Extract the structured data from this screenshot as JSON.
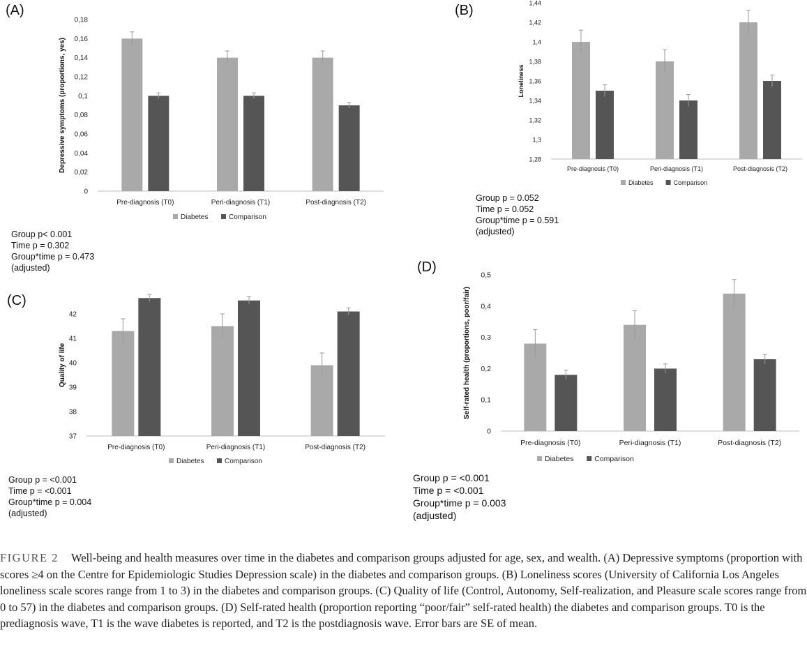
{
  "legend": {
    "diabetes": "Diabetes",
    "comparison": "Comparison"
  },
  "colors": {
    "diabetes": "#a9a9a9",
    "comparison": "#555555",
    "axis": "#bdbdbd",
    "errorbar": "#999999"
  },
  "chart_data": [
    {
      "panel_label": "(A)",
      "type": "bar",
      "ylabel": "Depressive symptoms (proportions, yes)",
      "categories": [
        "Pre-diagnosis (T0)",
        "Peri-diagnosis (T1)",
        "Post-diagnosis (T2)"
      ],
      "ylim": [
        0,
        0.18
      ],
      "yticks": [
        0,
        0.02,
        0.04,
        0.06,
        0.08,
        0.1,
        0.12,
        0.14,
        0.16,
        0.18
      ],
      "ytick_labels": [
        "0",
        "0,02",
        "0,04",
        "0,06",
        "0,08",
        "0,1",
        "0,12",
        "0,14",
        "0,16",
        "0,18"
      ],
      "series": [
        {
          "name": "Diabetes",
          "values": [
            0.16,
            0.14,
            0.14
          ],
          "errors": [
            0.007,
            0.007,
            0.007
          ]
        },
        {
          "name": "Comparison",
          "values": [
            0.1,
            0.1,
            0.09
          ],
          "errors": [
            0.003,
            0.003,
            0.003
          ]
        }
      ],
      "stats": [
        "Group p< 0.001",
        "Time p = 0.302",
        "Group*time p = 0.473",
        "(adjusted)"
      ]
    },
    {
      "panel_label": "(B)",
      "type": "bar",
      "ylabel": "Loneliness",
      "categories": [
        "Pre-diagnosis (T0)",
        "Peri-diagnosis (T1)",
        "Post-diagnosis (T2)"
      ],
      "ylim": [
        1.28,
        1.44
      ],
      "yticks": [
        1.28,
        1.3,
        1.32,
        1.34,
        1.36,
        1.38,
        1.4,
        1.42,
        1.44
      ],
      "ytick_labels": [
        "1,28",
        "1,3",
        "1,32",
        "1,34",
        "1,36",
        "1,38",
        "1,4",
        "1,42",
        "1,44"
      ],
      "series": [
        {
          "name": "Diabetes",
          "values": [
            1.4,
            1.38,
            1.42
          ],
          "errors": [
            0.012,
            0.012,
            0.012
          ]
        },
        {
          "name": "Comparison",
          "values": [
            1.35,
            1.34,
            1.36
          ],
          "errors": [
            0.006,
            0.006,
            0.006
          ]
        }
      ],
      "stats": [
        "Group p = 0.052",
        "Time p = 0.052",
        "Group*time p = 0.591",
        "(adjusted)"
      ]
    },
    {
      "panel_label": "(C)",
      "type": "bar",
      "ylabel": "Quality of life",
      "categories": [
        "Pre-diagnosis (T0)",
        "Peri-diagnosis (T1)",
        "Post-diagnosis (T2)"
      ],
      "ylim": [
        37,
        42.8
      ],
      "yticks": [
        37,
        38,
        39,
        40,
        41,
        42
      ],
      "ytick_labels": [
        "37",
        "38",
        "39",
        "40",
        "41",
        "42"
      ],
      "series": [
        {
          "name": "Diabetes",
          "values": [
            41.3,
            41.5,
            39.9
          ],
          "errors": [
            0.5,
            0.5,
            0.5
          ]
        },
        {
          "name": "Comparison",
          "values": [
            42.65,
            42.55,
            42.1
          ],
          "errors": [
            0.15,
            0.15,
            0.15
          ]
        }
      ],
      "stats": [
        "Group p = <0.001",
        "Time p = <0.001",
        "Group*time p = 0.004",
        "(adjusted)"
      ]
    },
    {
      "panel_label": "(D)",
      "type": "bar",
      "ylabel": "Self-rated health (proportions, poor/fair)",
      "categories": [
        "Pre-diagnosis (T0)",
        "Peri-diagnosis (T1)",
        "Post-diagnosis (T2)"
      ],
      "ylim": [
        0,
        0.5
      ],
      "yticks": [
        0,
        0.1,
        0.2,
        0.3,
        0.4,
        0.5
      ],
      "ytick_labels": [
        "0",
        "0,1",
        "0,2",
        "0,3",
        "0,4",
        "0,5"
      ],
      "series": [
        {
          "name": "Diabetes",
          "values": [
            0.28,
            0.34,
            0.44
          ],
          "errors": [
            0.045,
            0.045,
            0.045
          ]
        },
        {
          "name": "Comparison",
          "values": [
            0.18,
            0.2,
            0.23
          ],
          "errors": [
            0.015,
            0.015,
            0.015
          ]
        }
      ],
      "stats": [
        "Group p = <0.001",
        "Time p = <0.001",
        "Group*time p = 0.003",
        "(adjusted)"
      ]
    }
  ],
  "caption": {
    "figure_label": "FIGURE 2",
    "text": "Well-being and health measures over time in the diabetes and comparison groups adjusted for age, sex, and wealth. (A) Depressive symptoms (proportion with scores ≥4 on the Centre for Epidemiologic Studies Depression scale) in the diabetes and comparison groups. (B) Loneliness scores (University of California Los Angeles loneliness scale scores range from 1 to 3) in the diabetes and comparison groups. (C) Quality of life (Control, Autonomy, Self-realization, and Pleasure scale scores range from 0 to 57) in the diabetes and comparison groups. (D) Self-rated health (proportion reporting “poor/fair” self-rated health) the diabetes and comparison groups. T0 is the prediagnosis wave, T1 is the wave diabetes is reported, and T2 is the postdiagnosis wave. Error bars are SE of mean."
  }
}
